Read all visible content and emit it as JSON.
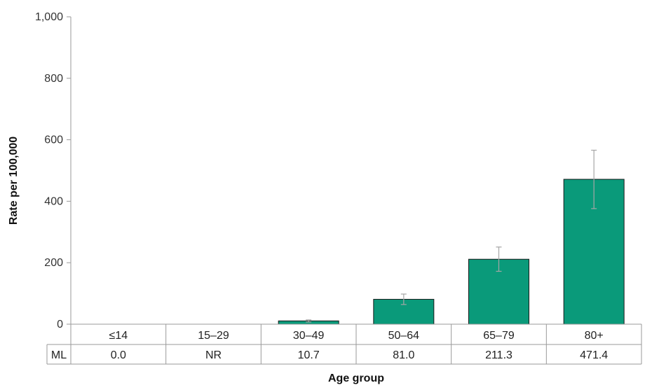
{
  "chart_data": {
    "type": "bar",
    "categories": [
      "≤14",
      "15–29",
      "30–49",
      "50–64",
      "65–79",
      "80+"
    ],
    "series": [
      {
        "name": "ML",
        "values": [
          0.0,
          null,
          10.7,
          81.0,
          211.3,
          471.4
        ],
        "value_labels": [
          "0.0",
          "NR",
          "10.7",
          "81.0",
          "211.3",
          "471.4"
        ],
        "error_low": [
          null,
          null,
          7,
          64,
          172,
          376
        ],
        "error_high": [
          null,
          null,
          14,
          98,
          251,
          566
        ]
      }
    ],
    "yticks": [
      "0",
      "200",
      "400",
      "600",
      "800",
      "1,000"
    ],
    "ytick_values": [
      0,
      200,
      400,
      600,
      800,
      1000
    ],
    "ylim": [
      0,
      1000
    ],
    "xlabel": "Age group",
    "ylabel": "Rate per 100,000",
    "grid": false,
    "legend": "data table below x-axis",
    "colors": {
      "bar": "#0a9a7a",
      "bar_edge": "#1a1a1a",
      "error_bar": "#a6a6a6",
      "axis": "#9a9a9a"
    }
  }
}
